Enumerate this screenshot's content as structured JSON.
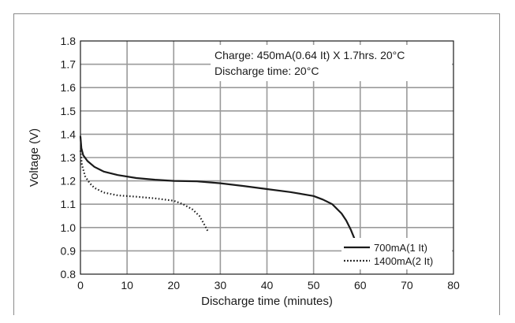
{
  "chart_data": {
    "type": "line",
    "title": "",
    "xlabel": "Discharge time (minutes)",
    "ylabel": "Voltage (V)",
    "xlim": [
      0,
      80
    ],
    "ylim": [
      0.8,
      1.8
    ],
    "x_ticks": [
      "0",
      "10",
      "20",
      "30",
      "40",
      "50",
      "60",
      "70",
      "80"
    ],
    "y_ticks": [
      "0.8",
      "0.9",
      "1.0",
      "1.1",
      "1.2",
      "1.3",
      "1.4",
      "1.5",
      "1.6",
      "1.7",
      "1.8"
    ],
    "grid": true,
    "legend_position": "bottom-right",
    "annotations": [
      "Charge: 450mA(0.64 It) X 1.7hrs. 20°C",
      "Discharge time: 20°C"
    ],
    "series": [
      {
        "name": "700mA(1 It)",
        "style": "solid",
        "color": "#1a1a1a",
        "points": [
          [
            0,
            1.39
          ],
          [
            0.2,
            1.34
          ],
          [
            0.6,
            1.31
          ],
          [
            1.5,
            1.285
          ],
          [
            3,
            1.26
          ],
          [
            5,
            1.24
          ],
          [
            8,
            1.225
          ],
          [
            12,
            1.212
          ],
          [
            16,
            1.205
          ],
          [
            20,
            1.2
          ],
          [
            25,
            1.198
          ],
          [
            30,
            1.19
          ],
          [
            35,
            1.178
          ],
          [
            40,
            1.165
          ],
          [
            45,
            1.152
          ],
          [
            50,
            1.135
          ],
          [
            52,
            1.12
          ],
          [
            54,
            1.1
          ],
          [
            56,
            1.06
          ],
          [
            57,
            1.03
          ],
          [
            58,
            0.99
          ],
          [
            58.7,
            0.955
          ]
        ]
      },
      {
        "name": "1400mA(2 It)",
        "style": "dotted",
        "color": "#1a1a1a",
        "points": [
          [
            0,
            1.33
          ],
          [
            0.3,
            1.27
          ],
          [
            1,
            1.22
          ],
          [
            2,
            1.19
          ],
          [
            3,
            1.17
          ],
          [
            5,
            1.15
          ],
          [
            8,
            1.138
          ],
          [
            12,
            1.132
          ],
          [
            16,
            1.125
          ],
          [
            20,
            1.115
          ],
          [
            22,
            1.1
          ],
          [
            24,
            1.078
          ],
          [
            25.5,
            1.05
          ],
          [
            26.5,
            1.015
          ],
          [
            27.3,
            0.985
          ]
        ]
      }
    ]
  }
}
